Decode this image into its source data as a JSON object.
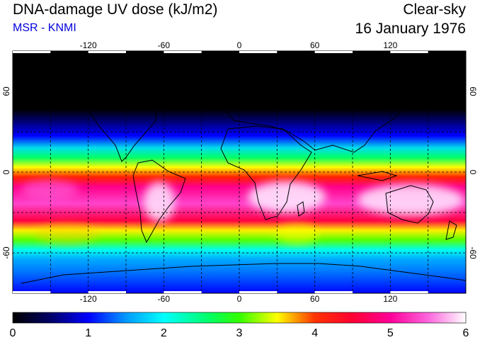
{
  "header": {
    "title": "DNA-damage UV dose (kJ/m2)",
    "subtitle": "MSR - KNMI",
    "subtitle_color": "#0000dd",
    "condition": "Clear-sky",
    "date": "16 January 1976"
  },
  "map": {
    "longitude_labels": [
      "-120",
      "-60",
      "0",
      "60",
      "120"
    ],
    "latitude_labels": [
      "60",
      "0",
      "-60"
    ],
    "longitude_range": [
      -180,
      180
    ],
    "latitude_range": [
      -90,
      90
    ],
    "gridlines": "dashed"
  },
  "colorbar": {
    "tick_labels": [
      "0",
      "1",
      "2",
      "3",
      "4",
      "5",
      "6"
    ],
    "range": [
      0,
      6
    ],
    "stops": [
      {
        "value": 0.0,
        "color": "#000000"
      },
      {
        "value": 0.5,
        "color": "#000066"
      },
      {
        "value": 1.0,
        "color": "#0000ff"
      },
      {
        "value": 1.5,
        "color": "#0099ff"
      },
      {
        "value": 2.0,
        "color": "#00ffff"
      },
      {
        "value": 2.6,
        "color": "#00ff66"
      },
      {
        "value": 3.0,
        "color": "#33ff00"
      },
      {
        "value": 3.5,
        "color": "#ffff00"
      },
      {
        "value": 4.0,
        "color": "#ff3300"
      },
      {
        "value": 4.5,
        "color": "#ff0033"
      },
      {
        "value": 5.0,
        "color": "#ff0099"
      },
      {
        "value": 5.5,
        "color": "#ff66dd"
      },
      {
        "value": 6.0,
        "color": "#ffffff"
      }
    ]
  }
}
